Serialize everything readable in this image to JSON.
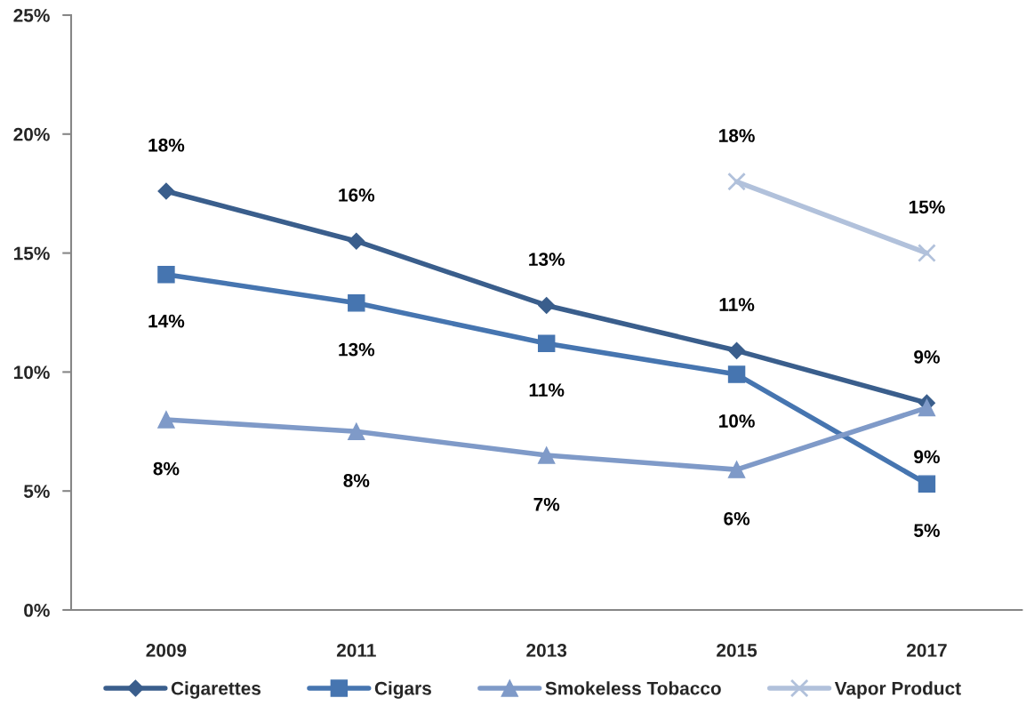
{
  "chart_data": {
    "type": "line",
    "categories": [
      "2009",
      "2011",
      "2013",
      "2015",
      "2017"
    ],
    "ylim": [
      0,
      25
    ],
    "yticks": [
      {
        "value": 0,
        "label": "0%"
      },
      {
        "value": 5,
        "label": "5%"
      },
      {
        "value": 10,
        "label": "10%"
      },
      {
        "value": 15,
        "label": "15%"
      },
      {
        "value": 20,
        "label": "20%"
      },
      {
        "value": 25,
        "label": "25%"
      }
    ],
    "legend": "bottom",
    "series": [
      {
        "name": "Cigarettes",
        "color": "#3a5e8c",
        "marker": "diamond",
        "values": [
          17.6,
          15.5,
          12.8,
          10.9,
          8.7
        ],
        "value_labels": [
          "18%",
          "16%",
          "13%",
          "11%",
          "9%"
        ]
      },
      {
        "name": "Cigars",
        "color": "#4675b0",
        "marker": "square",
        "values": [
          14.1,
          12.9,
          11.2,
          9.9,
          5.3
        ],
        "value_labels": [
          "14%",
          "13%",
          "11%",
          "10%",
          "5%"
        ]
      },
      {
        "name": "Smokeless Tobacco",
        "color": "#7f9ac8",
        "marker": "triangle",
        "values": [
          8.0,
          7.5,
          6.5,
          5.9,
          8.5
        ],
        "value_labels": [
          "8%",
          "8%",
          "7%",
          "6%",
          "9%"
        ]
      },
      {
        "name": "Vapor Product",
        "color": "#b1c1db",
        "marker": "cross",
        "values": [
          null,
          null,
          null,
          18.0,
          15.0
        ],
        "value_labels": [
          null,
          null,
          null,
          "18%",
          "15%"
        ]
      }
    ]
  }
}
